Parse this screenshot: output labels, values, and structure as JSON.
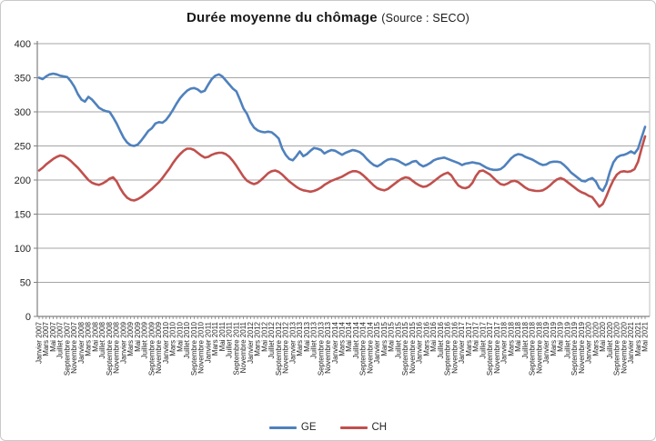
{
  "chart": {
    "title": "Durée moyenne du chômage",
    "source_note": "(Source : SECO)"
  },
  "legend": {
    "items": [
      {
        "label": "GE",
        "color": "#4F81BD"
      },
      {
        "label": "CH",
        "color": "#C0504D"
      }
    ]
  },
  "chart_data": {
    "type": "line",
    "title": "Durée moyenne du chômage (Source : SECO)",
    "xlabel": "",
    "ylabel": "",
    "grid": true,
    "legend_position": "bottom",
    "y_axis": {
      "min": 0,
      "max": 400,
      "step": 50,
      "ticks": [
        0,
        50,
        100,
        150,
        200,
        250,
        300,
        350,
        400
      ]
    },
    "colors": {
      "gridline": "#a6a6a6",
      "axis": "#808080",
      "plot_right_border": "#bfbfbf",
      "text": "#262626"
    },
    "x_label_note": "labels shown every second monthly data point",
    "points_per_label": 2,
    "x_labels": [
      "Janvier 2007",
      "Mars 2007",
      "Mai 2007",
      "Juillet 2007",
      "Septembre 2007",
      "Novembre 2007",
      "Janvier 2008",
      "Mars 2008",
      "Mai 2008",
      "Juillet 2008",
      "Septembre 2008",
      "Novembre 2008",
      "Janvier 2009",
      "Mars 2009",
      "Mai 2009",
      "Juillet 2009",
      "Septembre 2009",
      "Novembre 2009",
      "Janvier 2010",
      "Mars 2010",
      "Mai 2010",
      "Juillet 2010",
      "Septembre 2010",
      "Novembre 2010",
      "Janvier 2011",
      "Mars 2011",
      "Mai 2011",
      "Juillet 2011",
      "Septembre 2011",
      "Novembre 2011",
      "Janvier 2012",
      "Mars 2012",
      "Mai 2012",
      "Juillet 2012",
      "Septembre 2012",
      "Novembre 2012",
      "Janvier 2013",
      "Mars 2013",
      "Mai 2013",
      "Juillet 2013",
      "Septembre 2013",
      "Novembre 2013",
      "Janvier 2014",
      "Mars 2014",
      "Mai 2014",
      "Juillet 2014",
      "Septembre 2014",
      "Novembre 2014",
      "Janvier 2015",
      "Mars 2015",
      "Mai 2015",
      "Juillet 2015",
      "Septembre 2015",
      "Novembre 2015",
      "Janvier 2016",
      "Mars 2016",
      "Mai 2016",
      "Juillet 2016",
      "Septembre 2016",
      "Novembre 2016",
      "Janvier 2017",
      "Mars 2017",
      "Mai 2017",
      "Juillet 2017",
      "Septembre 2017",
      "Novembre 2017",
      "Janvier 2018",
      "Mars 2018",
      "Mai 2018",
      "Juillet 2018",
      "Septembre 2018",
      "Novembre 2018",
      "Janvier 2019",
      "Mars 2019",
      "Mai 2019",
      "Juillet 2019",
      "Septembre 2019",
      "Novembre 2019",
      "Janvier 2020",
      "Mars 2020",
      "Mai 2020",
      "Juillet 2020",
      "Septembre 2020",
      "Novembre 2020",
      "Janvier 2021",
      "Mars 2021",
      "Mai 2021"
    ],
    "series": [
      {
        "name": "GE",
        "color": "#4F81BD",
        "values": [
          350,
          348,
          352,
          355,
          356,
          355,
          353,
          352,
          351,
          345,
          337,
          326,
          318,
          315,
          322,
          318,
          312,
          306,
          303,
          301,
          300,
          292,
          283,
          272,
          262,
          255,
          251,
          250,
          252,
          258,
          265,
          272,
          276,
          283,
          285,
          284,
          288,
          295,
          303,
          312,
          320,
          326,
          331,
          334,
          335,
          333,
          329,
          331,
          340,
          348,
          353,
          355,
          352,
          346,
          340,
          334,
          330,
          318,
          305,
          297,
          285,
          277,
          273,
          271,
          270,
          271,
          270,
          266,
          261,
          246,
          237,
          231,
          229,
          235,
          242,
          235,
          238,
          243,
          247,
          246,
          244,
          239,
          242,
          244,
          243,
          240,
          237,
          240,
          242,
          244,
          243,
          241,
          237,
          231,
          226,
          222,
          220,
          223,
          227,
          230,
          231,
          230,
          228,
          225,
          222,
          224,
          227,
          228,
          223,
          220,
          222,
          225,
          229,
          231,
          232,
          233,
          231,
          229,
          227,
          225,
          222,
          224,
          225,
          226,
          225,
          224,
          221,
          218,
          216,
          215,
          215,
          216,
          220,
          226,
          232,
          236,
          238,
          237,
          234,
          232,
          230,
          227,
          224,
          222,
          223,
          226,
          227,
          227,
          226,
          222,
          217,
          211,
          207,
          203,
          199,
          198,
          201,
          203,
          198,
          188,
          184,
          194,
          212,
          226,
          233,
          236,
          237,
          239,
          242,
          239,
          246,
          262,
          278
        ]
      },
      {
        "name": "CH",
        "color": "#C0504D",
        "values": [
          214,
          218,
          223,
          227,
          231,
          234,
          236,
          235,
          232,
          228,
          223,
          218,
          212,
          206,
          200,
          196,
          194,
          193,
          195,
          198,
          202,
          204,
          198,
          188,
          180,
          174,
          171,
          170,
          172,
          175,
          179,
          183,
          187,
          192,
          197,
          203,
          210,
          217,
          225,
          232,
          238,
          243,
          246,
          246,
          244,
          240,
          236,
          233,
          234,
          237,
          239,
          240,
          240,
          238,
          234,
          228,
          221,
          213,
          205,
          199,
          196,
          194,
          196,
          200,
          205,
          210,
          213,
          214,
          212,
          208,
          203,
          198,
          194,
          190,
          187,
          185,
          184,
          183,
          184,
          186,
          189,
          193,
          196,
          199,
          201,
          203,
          205,
          208,
          211,
          213,
          213,
          211,
          207,
          202,
          197,
          192,
          188,
          186,
          185,
          187,
          191,
          195,
          199,
          202,
          204,
          203,
          199,
          195,
          192,
          190,
          191,
          194,
          198,
          202,
          206,
          209,
          211,
          207,
          199,
          192,
          189,
          188,
          190,
          196,
          206,
          213,
          214,
          211,
          208,
          203,
          198,
          194,
          193,
          195,
          198,
          199,
          197,
          193,
          189,
          186,
          185,
          184,
          184,
          185,
          188,
          192,
          197,
          201,
          203,
          201,
          197,
          193,
          189,
          185,
          182,
          180,
          177,
          175,
          168,
          161,
          165,
          176,
          189,
          200,
          208,
          212,
          213,
          212,
          213,
          216,
          227,
          246,
          264
        ]
      }
    ]
  }
}
